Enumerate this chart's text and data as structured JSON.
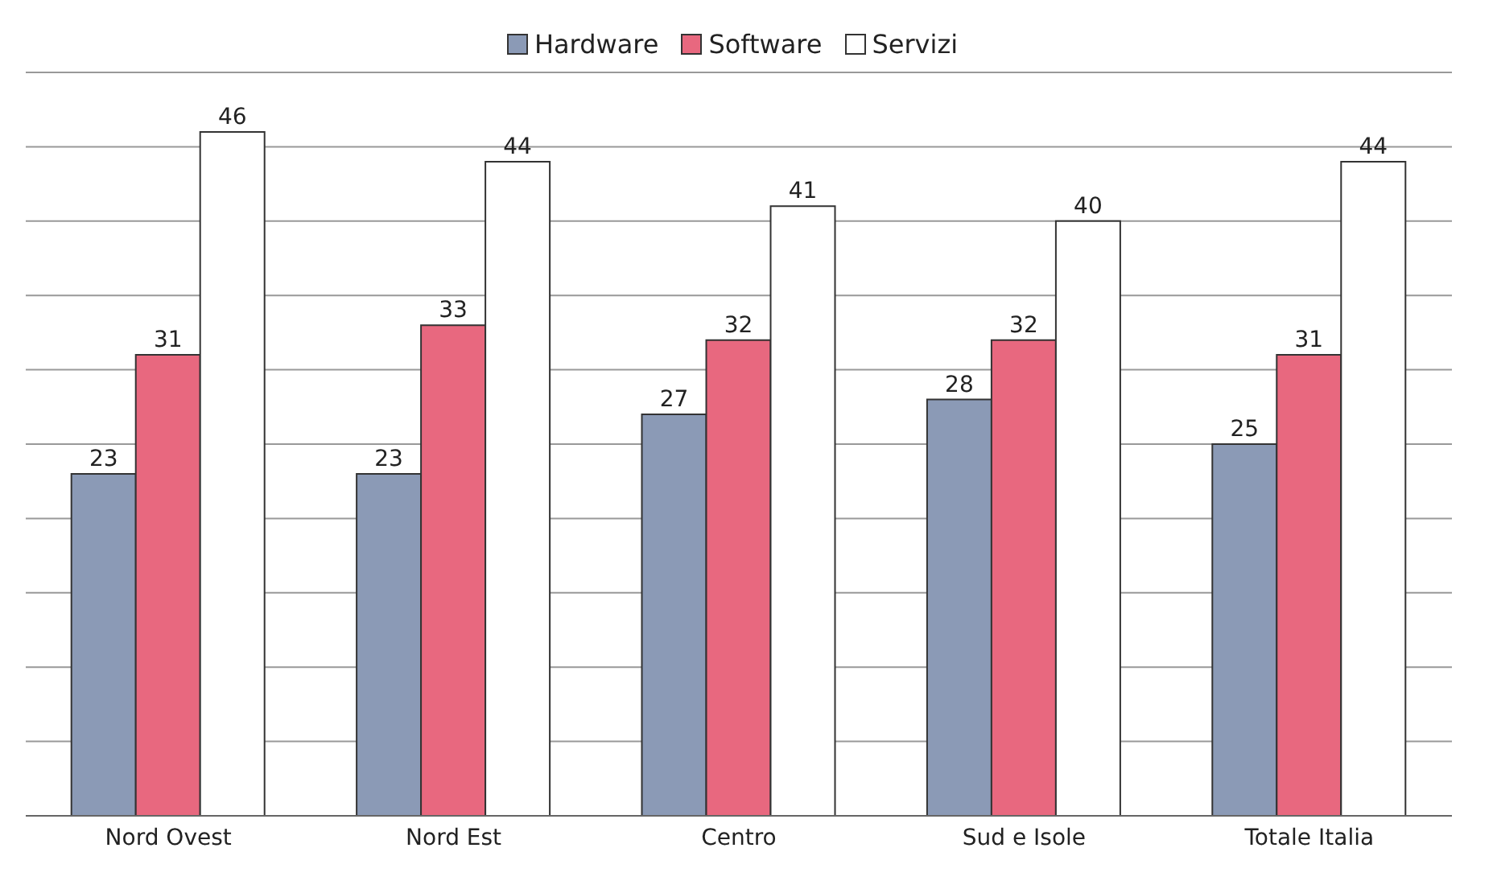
{
  "chart_data": {
    "type": "bar",
    "categories": [
      "Nord Ovest",
      "Nord Est",
      "Centro",
      "Sud e Isole",
      "Totale Italia"
    ],
    "series": [
      {
        "name": "Hardware",
        "color": "#8b9ab6",
        "values": [
          23,
          23,
          27,
          28,
          25
        ]
      },
      {
        "name": "Software",
        "color": "#e8687f",
        "values": [
          31,
          33,
          32,
          32,
          31
        ]
      },
      {
        "name": "Servizi",
        "color": "#ffffff",
        "values": [
          46,
          44,
          41,
          40,
          44
        ]
      }
    ],
    "ylim": [
      0,
      50
    ],
    "yticks": [
      {
        "value": 0,
        "label": null
      },
      {
        "value": 5,
        "label": null
      },
      {
        "value": 10,
        "label": null
      },
      {
        "value": 15,
        "label": null
      },
      {
        "value": 20,
        "label": null
      },
      {
        "value": 25,
        "label": null
      },
      {
        "value": 30,
        "label": null
      },
      {
        "value": 35,
        "label": null
      },
      {
        "value": 40,
        "label": null
      },
      {
        "value": 45,
        "label": null
      },
      {
        "value": 50,
        "label": null
      }
    ],
    "tick_labels": "x",
    "grid": "y",
    "legend": "top",
    "data_labels": true
  }
}
